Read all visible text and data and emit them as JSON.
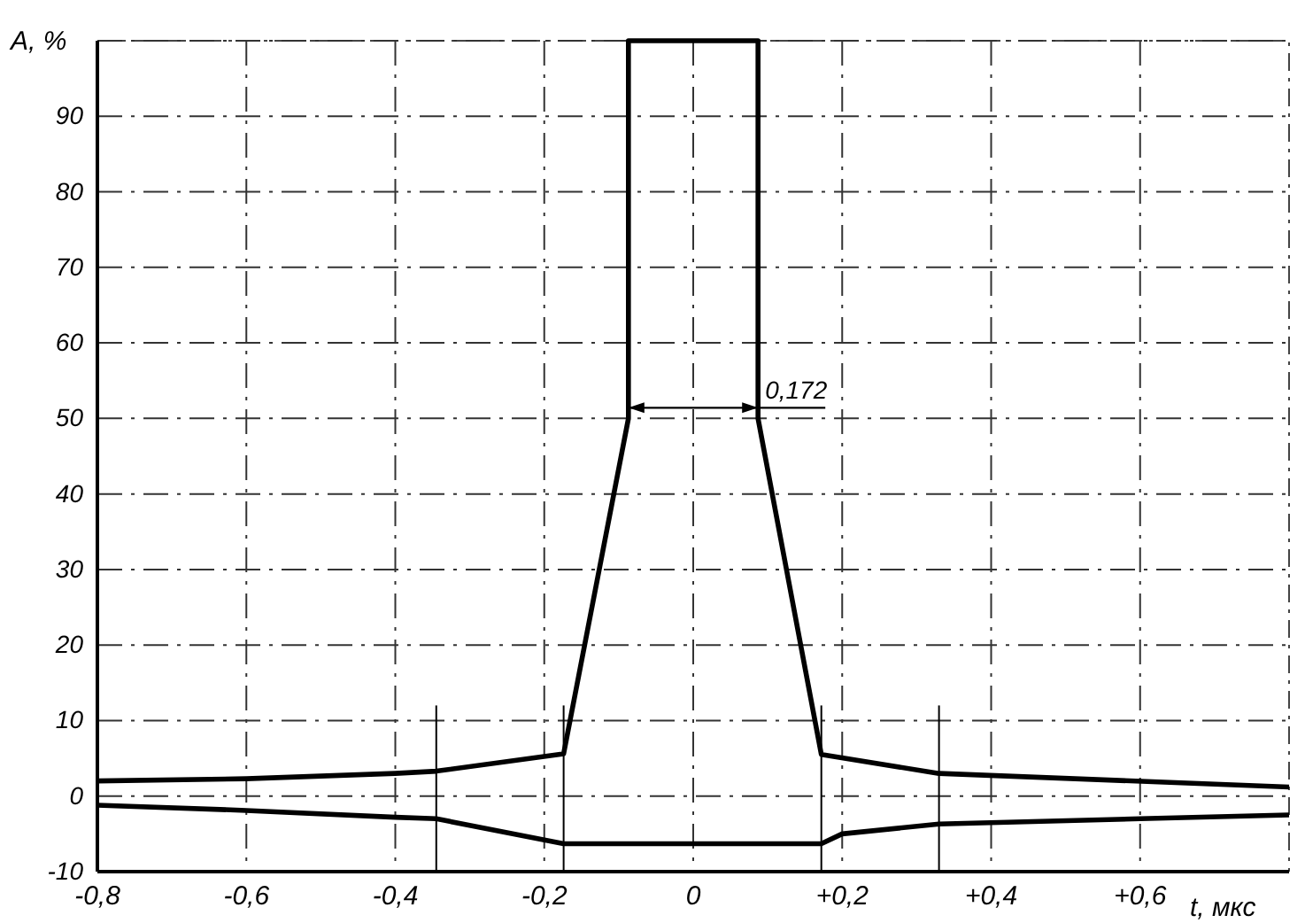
{
  "chart_data": {
    "type": "line",
    "xlabel": "t, мкс",
    "ylabel": "A, %",
    "xlim": [
      -0.8,
      0.8
    ],
    "ylim": [
      -10,
      100
    ],
    "xticks": [
      {
        "value": -0.8,
        "label": "-0,8"
      },
      {
        "value": -0.6,
        "label": "-0,6"
      },
      {
        "value": -0.4,
        "label": "-0,4"
      },
      {
        "value": -0.2,
        "label": "-0,2"
      },
      0,
      {
        "value": 0.2,
        "label": "+0,2"
      },
      {
        "value": 0.4,
        "label": "+0,4"
      },
      {
        "value": 0.6,
        "label": "+0,6"
      }
    ],
    "yticks": [
      -10,
      0,
      10,
      20,
      30,
      40,
      50,
      60,
      70,
      80,
      90,
      {
        "value": 100,
        "label": null
      }
    ],
    "grid": true,
    "marker": "none",
    "line_style": "solid",
    "series": [
      {
        "color": "#000000",
        "x": [
          -0.8,
          -0.6,
          -0.4,
          -0.345,
          -0.174,
          -0.087,
          -0.087,
          0.087,
          0.087,
          0.172,
          0.33,
          0.8
        ],
        "values": [
          2,
          2.3,
          3,
          3.3,
          5.6,
          50,
          100,
          100,
          50,
          5.5,
          3,
          1.2
        ]
      },
      {
        "color": "#000000",
        "x": [
          -0.8,
          -0.6,
          -0.4,
          -0.345,
          -0.174,
          0.172,
          0.2,
          0.33,
          0.6,
          0.8
        ],
        "values": [
          -1.2,
          -1.9,
          -2.8,
          -3,
          -6.3,
          -6.3,
          -5,
          -3.7,
          -3,
          -2.5
        ]
      }
    ],
    "ref_lines": [
      {
        "axis": "x",
        "value": -0.345,
        "label": null
      },
      {
        "axis": "x",
        "value": -0.174,
        "label": null
      },
      {
        "axis": "x",
        "value": 0.172,
        "label": null
      },
      {
        "axis": "x",
        "value": 0.33,
        "label": null
      }
    ],
    "annotations": [
      {
        "text": "0,172",
        "x": 0.087,
        "y": 50
      }
    ]
  }
}
